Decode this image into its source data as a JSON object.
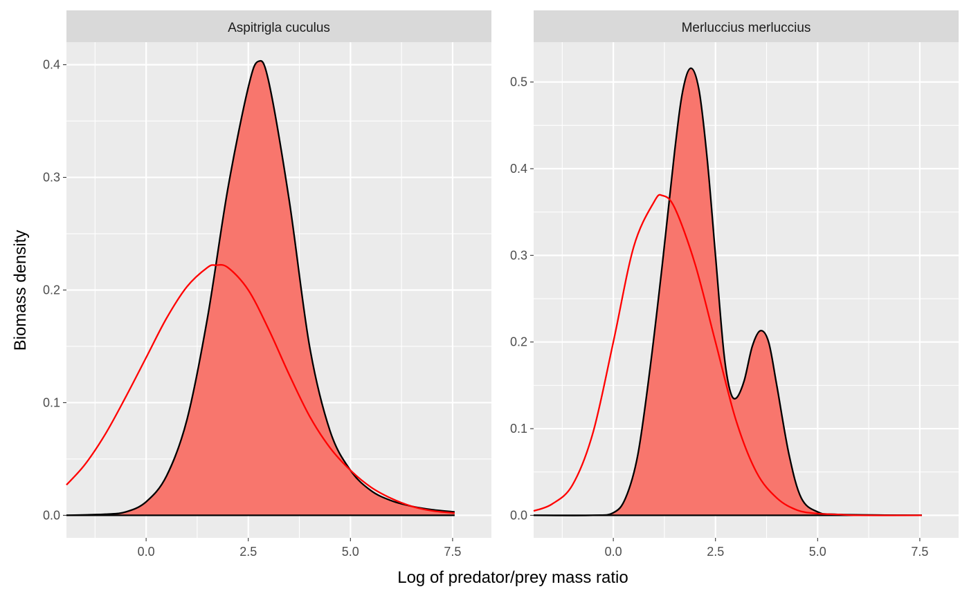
{
  "chart_data": {
    "type": "area",
    "xlabel": "Log of predator/prey mass ratio",
    "ylabel": "Biomass density",
    "colors": {
      "panel_background": "#EBEBEB",
      "strip_background": "#D9D9D9",
      "fill": "#F8766D",
      "outline": "#000000",
      "line": "#FF0000",
      "grid": "#FFFFFF"
    },
    "grid": true,
    "facets": [
      {
        "title": "Aspitrigla cuculus",
        "xlim": [
          -1.95,
          8.45
        ],
        "ylim": [
          -0.02,
          0.42
        ],
        "x_ticks": [
          0,
          2.5,
          5,
          7.5
        ],
        "x_tick_labels": [
          "0.0",
          "2.5",
          "5.0",
          "7.5"
        ],
        "y_ticks": [
          0,
          0.1,
          0.2,
          0.3,
          0.4
        ],
        "y_tick_labels": [
          "0.0",
          "0.1",
          "0.2",
          "0.3",
          "0.4"
        ],
        "series": [
          {
            "kind": "area",
            "x": [
              -1.95,
              -1.0,
              -0.5,
              0.0,
              0.5,
              1.0,
              1.5,
              2.0,
              2.5,
              2.75,
              3.0,
              3.5,
              4.0,
              4.5,
              5.0,
              5.5,
              6.0,
              6.5,
              7.0,
              7.55
            ],
            "y": [
              0.0,
              0.001,
              0.003,
              0.012,
              0.035,
              0.085,
              0.175,
              0.29,
              0.38,
              0.403,
              0.385,
              0.28,
              0.15,
              0.075,
              0.04,
              0.022,
              0.013,
              0.008,
              0.005,
              0.003
            ]
          },
          {
            "kind": "line",
            "x": [
              -1.95,
              -1.5,
              -1.0,
              -0.5,
              0.0,
              0.5,
              1.0,
              1.5,
              1.7,
              2.0,
              2.5,
              3.0,
              3.5,
              4.0,
              4.5,
              5.0,
              5.5,
              6.0,
              6.5,
              7.0,
              7.55
            ],
            "y": [
              0.027,
              0.045,
              0.072,
              0.105,
              0.14,
              0.175,
              0.203,
              0.22,
              0.222,
              0.22,
              0.2,
              0.165,
              0.125,
              0.088,
              0.06,
              0.04,
              0.025,
              0.015,
              0.008,
              0.004,
              0.002
            ]
          }
        ]
      },
      {
        "title": "Merluccius merluccius",
        "xlim": [
          -1.95,
          8.45
        ],
        "ylim": [
          -0.026,
          0.546
        ],
        "x_ticks": [
          0,
          2.5,
          5,
          7.5
        ],
        "x_tick_labels": [
          "0.0",
          "2.5",
          "5.0",
          "7.5"
        ],
        "y_ticks": [
          0,
          0.1,
          0.2,
          0.3,
          0.4,
          0.5
        ],
        "y_tick_labels": [
          "0.0",
          "0.1",
          "0.2",
          "0.3",
          "0.4",
          "0.5"
        ],
        "series": [
          {
            "kind": "area",
            "x": [
              -1.95,
              -0.5,
              0.0,
              0.3,
              0.6,
              0.9,
              1.2,
              1.5,
              1.7,
              1.9,
              2.1,
              2.3,
              2.5,
              2.7,
              2.85,
              3.0,
              3.2,
              3.4,
              3.6,
              3.8,
              4.0,
              4.3,
              4.6,
              5.0,
              5.5,
              7.55
            ],
            "y": [
              0.0,
              0.0,
              0.003,
              0.02,
              0.07,
              0.17,
              0.29,
              0.42,
              0.49,
              0.516,
              0.49,
              0.41,
              0.3,
              0.19,
              0.145,
              0.135,
              0.155,
              0.195,
              0.213,
              0.2,
              0.15,
              0.07,
              0.02,
              0.004,
              0.001,
              0.0
            ]
          },
          {
            "kind": "line",
            "x": [
              -1.95,
              -1.5,
              -1.0,
              -0.5,
              0.0,
              0.5,
              1.0,
              1.2,
              1.5,
              2.0,
              2.5,
              3.0,
              3.5,
              4.0,
              4.5,
              5.0,
              5.5,
              6.0,
              7.55
            ],
            "y": [
              0.005,
              0.013,
              0.035,
              0.095,
              0.2,
              0.31,
              0.362,
              0.369,
              0.355,
              0.29,
              0.2,
              0.11,
              0.05,
              0.02,
              0.006,
              0.002,
              0.001,
              0.0,
              0.0
            ]
          }
        ]
      }
    ]
  }
}
